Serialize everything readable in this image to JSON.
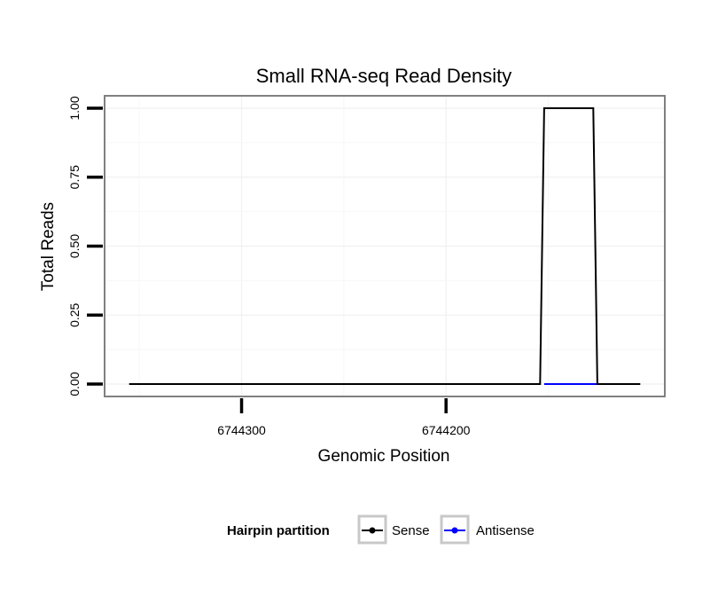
{
  "chart_data": {
    "type": "line",
    "title": "Small RNA-seq Read Density",
    "xlabel": "Genomic Position",
    "ylabel": "Total Reads",
    "x_axis_reversed": true,
    "xlim": [
      6744367,
      6744093
    ],
    "ylim": [
      -0.045,
      1.045
    ],
    "x_ticks": [
      6744300,
      6744200
    ],
    "x_tick_labels": [
      "6744300",
      "6744200"
    ],
    "y_ticks": [
      0,
      0.25,
      0.5,
      0.75,
      1
    ],
    "y_tick_labels": [
      "0.00",
      "0.25",
      "0.50",
      "0.75",
      "1.00"
    ],
    "grid": true,
    "legend": {
      "title": "Hairpin partition",
      "position": "bottom",
      "entries": [
        "Sense",
        "Antisense"
      ]
    },
    "series": [
      {
        "name": "Sense",
        "color": "#000000",
        "x": [
          6744355,
          6744154,
          6744152,
          6744128,
          6744126,
          6744105
        ],
        "y": [
          0,
          0,
          1,
          1,
          0,
          0
        ]
      },
      {
        "name": "Antisense",
        "color": "#0000ff",
        "x": [
          6744152,
          6744126
        ],
        "y": [
          0,
          0
        ]
      }
    ]
  }
}
